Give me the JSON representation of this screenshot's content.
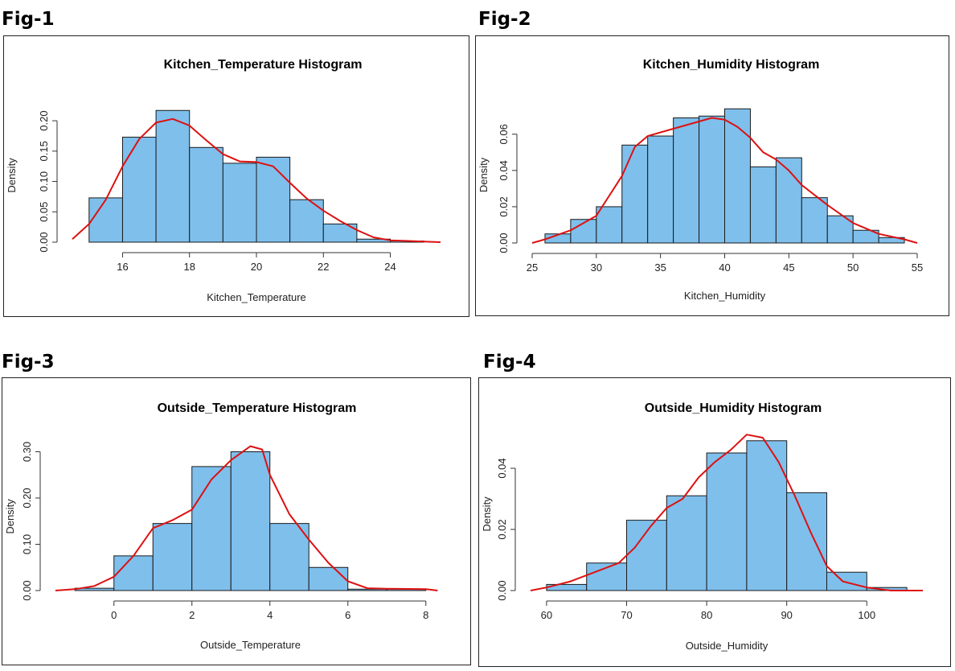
{
  "figures": [
    {
      "label": "Fig-1"
    },
    {
      "label": "Fig-2"
    },
    {
      "label": "Fig-3"
    },
    {
      "label": "Fig-4"
    }
  ],
  "colors": {
    "bar_fill": "#7fbfec",
    "bar_stroke": "#1a1a1a",
    "density_line": "#dd1111",
    "axis": "#333333"
  },
  "chart_data": [
    {
      "type": "bar",
      "title": "Kitchen_Temperature Histogram",
      "xlabel": "Kitchen_Temperature",
      "ylabel": "Density",
      "xlim": [
        14.5,
        25.5
      ],
      "ylim": [
        0,
        0.22
      ],
      "xticks": [
        16,
        18,
        20,
        22,
        24
      ],
      "yticks": [
        "0.00",
        "0.05",
        "0.10",
        "0.15",
        "0.20"
      ],
      "bin_edges": [
        15,
        16,
        17,
        18,
        19,
        20,
        21,
        22,
        23,
        24,
        25
      ],
      "values": [
        0.073,
        0.173,
        0.217,
        0.156,
        0.13,
        0.14,
        0.07,
        0.03,
        0.005,
        0.002
      ],
      "density_curve": [
        [
          14.5,
          0.005
        ],
        [
          15,
          0.03
        ],
        [
          15.5,
          0.07
        ],
        [
          16,
          0.125
        ],
        [
          16.5,
          0.17
        ],
        [
          17,
          0.197
        ],
        [
          17.5,
          0.203
        ],
        [
          18,
          0.192
        ],
        [
          18.5,
          0.168
        ],
        [
          19,
          0.145
        ],
        [
          19.5,
          0.133
        ],
        [
          20,
          0.132
        ],
        [
          20.5,
          0.125
        ],
        [
          21,
          0.098
        ],
        [
          21.5,
          0.072
        ],
        [
          22,
          0.052
        ],
        [
          22.5,
          0.035
        ],
        [
          23,
          0.02
        ],
        [
          23.5,
          0.008
        ],
        [
          24,
          0.003
        ],
        [
          25,
          0.001
        ],
        [
          25.5,
          0.0
        ]
      ]
    },
    {
      "type": "bar",
      "title": "Kitchen_Humidity Histogram",
      "xlabel": "Kitchen_Humidity",
      "ylabel": "Density",
      "xlim": [
        25,
        55
      ],
      "ylim": [
        0,
        0.075
      ],
      "xticks": [
        25,
        30,
        35,
        40,
        45,
        50,
        55
      ],
      "yticks": [
        "0.00",
        "0.02",
        "0.04",
        "0.06"
      ],
      "bin_edges": [
        26,
        28,
        30,
        32,
        34,
        36,
        38,
        40,
        42,
        44,
        46,
        48,
        50,
        52,
        54
      ],
      "values": [
        0.005,
        0.013,
        0.02,
        0.054,
        0.059,
        0.069,
        0.07,
        0.074,
        0.042,
        0.047,
        0.025,
        0.015,
        0.007,
        0.003
      ],
      "density_curve": [
        [
          25,
          0.0
        ],
        [
          26,
          0.002
        ],
        [
          28,
          0.007
        ],
        [
          30,
          0.015
        ],
        [
          32,
          0.037
        ],
        [
          33,
          0.053
        ],
        [
          34,
          0.059
        ],
        [
          36,
          0.063
        ],
        [
          38,
          0.067
        ],
        [
          39,
          0.069
        ],
        [
          40,
          0.068
        ],
        [
          41,
          0.064
        ],
        [
          42,
          0.058
        ],
        [
          43,
          0.05
        ],
        [
          44,
          0.046
        ],
        [
          45,
          0.04
        ],
        [
          46,
          0.032
        ],
        [
          48,
          0.021
        ],
        [
          50,
          0.011
        ],
        [
          52,
          0.005
        ],
        [
          54,
          0.002
        ],
        [
          55,
          0.0
        ]
      ]
    },
    {
      "type": "bar",
      "title": "Outside_Temperature Histogram",
      "xlabel": "Outside_Temperature",
      "ylabel": "Density",
      "xlim": [
        -1.5,
        8.5
      ],
      "ylim": [
        0,
        0.32
      ],
      "xticks": [
        0,
        2,
        4,
        6,
        8
      ],
      "yticks": [
        "0.00",
        "0.10",
        "0.20",
        "0.30"
      ],
      "bin_edges": [
        -1,
        0,
        1,
        2,
        3,
        4,
        5,
        6,
        7,
        8
      ],
      "values": [
        0.005,
        0.075,
        0.145,
        0.268,
        0.3,
        0.145,
        0.05,
        0.003,
        0.003
      ],
      "density_curve": [
        [
          -1.5,
          0.0
        ],
        [
          -1,
          0.003
        ],
        [
          -0.5,
          0.01
        ],
        [
          0,
          0.03
        ],
        [
          0.5,
          0.075
        ],
        [
          1,
          0.135
        ],
        [
          1.5,
          0.152
        ],
        [
          2,
          0.175
        ],
        [
          2.5,
          0.24
        ],
        [
          3,
          0.282
        ],
        [
          3.5,
          0.312
        ],
        [
          3.8,
          0.305
        ],
        [
          4,
          0.25
        ],
        [
          4.5,
          0.165
        ],
        [
          5,
          0.11
        ],
        [
          5.5,
          0.06
        ],
        [
          6,
          0.02
        ],
        [
          6.5,
          0.005
        ],
        [
          7,
          0.004
        ],
        [
          8,
          0.003
        ],
        [
          8.3,
          0.0
        ]
      ]
    },
    {
      "type": "bar",
      "title": "Outside_Humidity Histogram",
      "xlabel": "Outside_Humidity",
      "ylabel": "Density",
      "xlim": [
        58,
        107
      ],
      "ylim": [
        0,
        0.05
      ],
      "xticks": [
        60,
        70,
        80,
        90,
        100
      ],
      "yticks": [
        "0.00",
        "0.02",
        "0.04"
      ],
      "bin_edges": [
        60,
        65,
        70,
        75,
        80,
        85,
        90,
        95,
        100,
        105
      ],
      "values": [
        0.002,
        0.009,
        0.023,
        0.031,
        0.045,
        0.049,
        0.032,
        0.006,
        0.001
      ],
      "density_curve": [
        [
          58,
          0.0
        ],
        [
          60,
          0.001
        ],
        [
          63,
          0.003
        ],
        [
          66,
          0.006
        ],
        [
          69,
          0.009
        ],
        [
          71,
          0.014
        ],
        [
          73,
          0.021
        ],
        [
          75,
          0.027
        ],
        [
          77,
          0.03
        ],
        [
          79,
          0.037
        ],
        [
          81,
          0.042
        ],
        [
          83,
          0.046
        ],
        [
          85,
          0.051
        ],
        [
          87,
          0.05
        ],
        [
          89,
          0.042
        ],
        [
          91,
          0.031
        ],
        [
          93,
          0.019
        ],
        [
          95,
          0.008
        ],
        [
          97,
          0.003
        ],
        [
          100,
          0.001
        ],
        [
          103,
          0.0
        ],
        [
          107,
          0.0
        ]
      ]
    }
  ]
}
